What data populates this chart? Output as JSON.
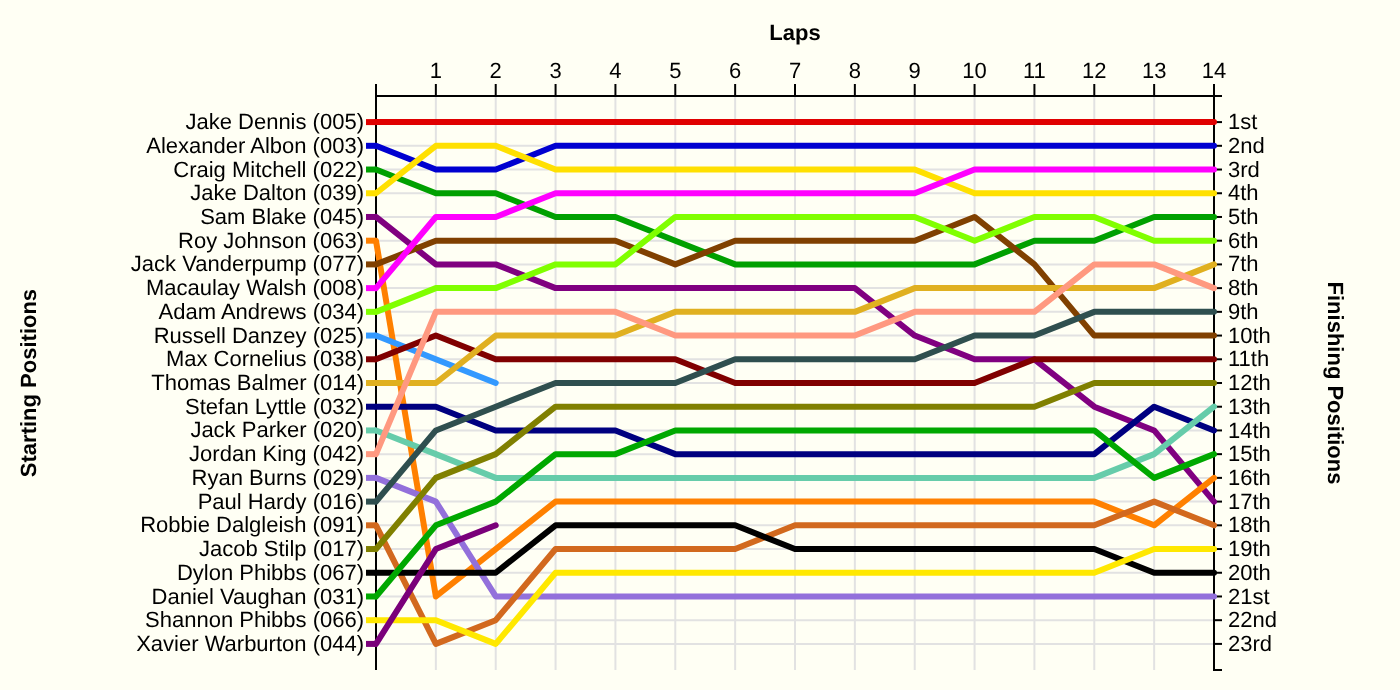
{
  "chart_data": {
    "type": "line",
    "xlabel": "Laps",
    "annotations": [
      "Starting Positions"
    ],
    "legend": "left",
    "y2label": "Finishing Positions",
    "x": [
      0,
      1,
      2,
      3,
      4,
      5,
      6,
      7,
      8,
      9,
      10,
      11,
      12,
      13,
      14
    ],
    "xlim": [
      0,
      14
    ],
    "xticks": [
      {
        "value": 0,
        "label": null
      },
      1,
      2,
      3,
      4,
      5,
      6,
      7,
      8,
      9,
      10,
      11,
      12,
      13,
      14
    ],
    "ylim": [
      24.1,
      -0.1
    ],
    "yticks": [
      {
        "value": 1,
        "label": "1st"
      },
      {
        "value": 2,
        "label": "2nd"
      },
      {
        "value": 3,
        "label": "3rd"
      },
      {
        "value": 4,
        "label": "4th"
      },
      {
        "value": 5,
        "label": "5th"
      },
      {
        "value": 6,
        "label": "6th"
      },
      {
        "value": 7,
        "label": "7th"
      },
      {
        "value": 8,
        "label": "8th"
      },
      {
        "value": 9,
        "label": "9th"
      },
      {
        "value": 10,
        "label": "10th"
      },
      {
        "value": 11,
        "label": "11th"
      },
      {
        "value": 12,
        "label": "12th"
      },
      {
        "value": 13,
        "label": "13th"
      },
      {
        "value": 14,
        "label": "14th"
      },
      {
        "value": 15,
        "label": "15th"
      },
      {
        "value": 16,
        "label": "16th"
      },
      {
        "value": 17,
        "label": "17th"
      },
      {
        "value": 18,
        "label": "18th"
      },
      {
        "value": 19,
        "label": "19th"
      },
      {
        "value": 20,
        "label": "20th"
      },
      {
        "value": 21,
        "label": "21st"
      },
      {
        "value": 22,
        "label": "22nd"
      },
      {
        "value": 23,
        "label": "23rd"
      }
    ],
    "grid": true,
    "marker": "none",
    "line_style": "solid",
    "series": [
      {
        "name": "Jake Dennis (005)",
        "color": "#e00000",
        "values": [
          1,
          1,
          1,
          1,
          1,
          1,
          1,
          1,
          1,
          1,
          1,
          1,
          1,
          1,
          1
        ]
      },
      {
        "name": "Alexander Albon (003)",
        "color": "#0000d0",
        "values": [
          2,
          3,
          3,
          2,
          2,
          2,
          2,
          2,
          2,
          2,
          2,
          2,
          2,
          2,
          2
        ]
      },
      {
        "name": "Craig Mitchell (022)",
        "color": "#00a000",
        "values": [
          3,
          4,
          4,
          5,
          5,
          6,
          7,
          7,
          7,
          7,
          7,
          6,
          6,
          5,
          5
        ]
      },
      {
        "name": "Jake Dalton (039)",
        "color": "#ffe000",
        "values": [
          4,
          2,
          2,
          3,
          3,
          3,
          3,
          3,
          3,
          3,
          4,
          4,
          4,
          4,
          4
        ]
      },
      {
        "name": "Sam Blake (045)",
        "color": "#800080",
        "values": [
          5,
          7,
          7,
          8,
          8,
          8,
          8,
          8,
          8,
          10,
          11,
          11,
          13,
          14,
          17
        ]
      },
      {
        "name": "Roy Johnson (063)",
        "color": "#ff8000",
        "values": [
          6,
          21,
          19,
          17,
          17,
          17,
          17,
          17,
          17,
          17,
          17,
          17,
          17,
          18,
          16
        ]
      },
      {
        "name": "Jack Vanderpump (077)",
        "color": "#804000",
        "values": [
          7,
          6,
          6,
          6,
          6,
          7,
          6,
          6,
          6,
          6,
          5,
          7,
          10,
          10,
          10
        ]
      },
      {
        "name": "Macaulay Walsh (008)",
        "color": "#ff00ff",
        "values": [
          8,
          5,
          5,
          4,
          4,
          4,
          4,
          4,
          4,
          4,
          3,
          3,
          3,
          3,
          3
        ]
      },
      {
        "name": "Adam Andrews (034)",
        "color": "#80ff00",
        "values": [
          9,
          8,
          8,
          7,
          7,
          5,
          5,
          5,
          5,
          5,
          6,
          5,
          5,
          6,
          6
        ]
      },
      {
        "name": "Russell Danzey (025)",
        "color": "#3399ff",
        "values": [
          10,
          11,
          12,
          null,
          null,
          null,
          null,
          null,
          null,
          null,
          null,
          null,
          null,
          null,
          null
        ]
      },
      {
        "name": "Max Cornelius (038)",
        "color": "#800000",
        "values": [
          11,
          10,
          11,
          11,
          11,
          11,
          12,
          12,
          12,
          12,
          12,
          11,
          11,
          11,
          11
        ]
      },
      {
        "name": "Thomas Balmer (014)",
        "color": "#e0b020",
        "values": [
          12,
          12,
          10,
          10,
          10,
          9,
          9,
          9,
          9,
          8,
          8,
          8,
          8,
          8,
          7
        ]
      },
      {
        "name": "Stefan Lyttle (032)",
        "color": "#000080",
        "values": [
          13,
          13,
          14,
          14,
          14,
          15,
          15,
          15,
          15,
          15,
          15,
          15,
          15,
          13,
          14
        ]
      },
      {
        "name": "Jack Parker (020)",
        "color": "#66ccaa",
        "values": [
          14,
          15,
          16,
          16,
          16,
          16,
          16,
          16,
          16,
          16,
          16,
          16,
          16,
          15,
          13
        ]
      },
      {
        "name": "Jordan King (042)",
        "color": "#ff9980",
        "values": [
          15,
          9,
          9,
          9,
          9,
          10,
          10,
          10,
          10,
          9,
          9,
          9,
          7,
          7,
          8
        ]
      },
      {
        "name": "Ryan Burns (029)",
        "color": "#9370db",
        "values": [
          16,
          17,
          21,
          21,
          21,
          21,
          21,
          21,
          21,
          21,
          21,
          21,
          21,
          21,
          21
        ]
      },
      {
        "name": "Paul Hardy (016)",
        "color": "#2f4f4f",
        "values": [
          17,
          14,
          13,
          12,
          12,
          12,
          11,
          11,
          11,
          11,
          10,
          10,
          9,
          9,
          9
        ]
      },
      {
        "name": "Robbie Dalgleish (091)",
        "color": "#d2691e",
        "values": [
          18,
          23,
          22,
          19,
          19,
          19,
          19,
          18,
          18,
          18,
          18,
          18,
          18,
          17,
          18
        ]
      },
      {
        "name": "Jacob Stilp (017)",
        "color": "#808000",
        "values": [
          19,
          16,
          15,
          13,
          13,
          13,
          13,
          13,
          13,
          13,
          13,
          13,
          12,
          12,
          12
        ]
      },
      {
        "name": "Dylon Phibbs (067)",
        "color": "#000000",
        "values": [
          20,
          20,
          20,
          18,
          18,
          18,
          18,
          19,
          19,
          19,
          19,
          19,
          19,
          20,
          20
        ]
      },
      {
        "name": "Daniel Vaughan (031)",
        "color": "#00a800",
        "values": [
          21,
          18,
          17,
          15,
          15,
          14,
          14,
          14,
          14,
          14,
          14,
          14,
          14,
          16,
          15
        ]
      },
      {
        "name": "Shannon Phibbs (066)",
        "color": "#ffe800",
        "values": [
          22,
          22,
          23,
          20,
          20,
          20,
          20,
          20,
          20,
          20,
          20,
          20,
          20,
          19,
          19
        ]
      },
      {
        "name": "Xavier Warburton (044)",
        "color": "#7a007a",
        "values": [
          23,
          19,
          18,
          null,
          null,
          null,
          null,
          null,
          null,
          null,
          null,
          null,
          null,
          null,
          null
        ]
      }
    ]
  }
}
